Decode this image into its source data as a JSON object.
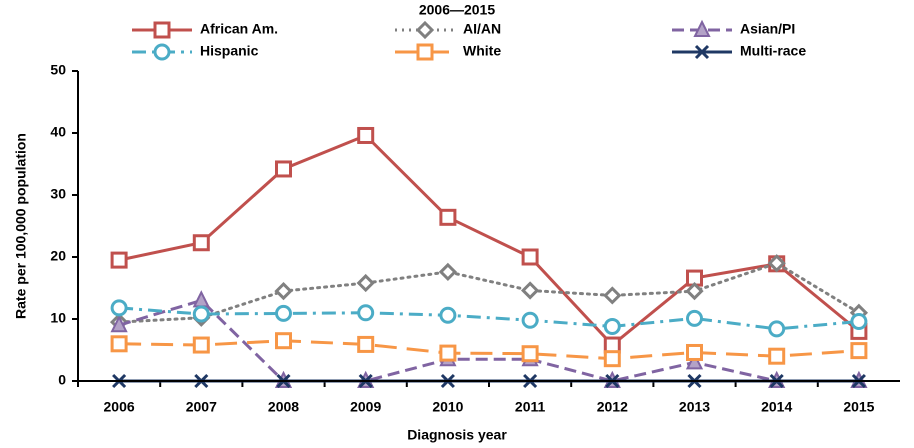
{
  "chart_data": {
    "type": "line",
    "title": "2006—2015",
    "x_label": "Diagnosis year",
    "y_label": "Rate per 100,000 population",
    "categories": [
      "2006",
      "2007",
      "2008",
      "2009",
      "2010",
      "2011",
      "2012",
      "2013",
      "2014",
      "2015"
    ],
    "ylim": [
      0,
      50
    ],
    "yticks": [
      0,
      10,
      20,
      30,
      40,
      50
    ],
    "series": [
      {
        "name": "African Am.",
        "color": "#c0504d",
        "dash": "solid",
        "marker": "square",
        "values": [
          19.5,
          22.3,
          34.2,
          39.6,
          26.4,
          20,
          5.8,
          16.6,
          18.9,
          8
        ]
      },
      {
        "name": "AI/AN",
        "color": "#808080",
        "dash": "dot",
        "marker": "diamond",
        "values": [
          9.5,
          10.2,
          14.5,
          15.8,
          17.6,
          14.6,
          13.8,
          14.5,
          19,
          11
        ]
      },
      {
        "name": "Asian/PI",
        "color": "#8064a2",
        "dash": "dash",
        "marker": "triangle",
        "values": [
          9,
          13,
          0,
          0,
          3.5,
          3.5,
          0,
          3,
          0,
          0
        ]
      },
      {
        "name": "Hispanic",
        "color": "#4bacc6",
        "dash": "dashdot",
        "marker": "circle",
        "values": [
          11.8,
          10.8,
          10.9,
          11,
          10.6,
          9.8,
          8.8,
          10.1,
          8.4,
          9.6
        ]
      },
      {
        "name": "White",
        "color": "#f79646",
        "dash": "longdash",
        "marker": "square",
        "values": [
          6,
          5.8,
          6.5,
          5.9,
          4.5,
          4.4,
          3.6,
          4.6,
          4,
          4.9
        ]
      },
      {
        "name": "Multi-race",
        "color": "#1f3864",
        "dash": "solid",
        "marker": "x",
        "values": [
          0,
          0,
          0,
          0,
          0,
          0,
          0,
          0,
          0,
          0
        ]
      }
    ]
  }
}
